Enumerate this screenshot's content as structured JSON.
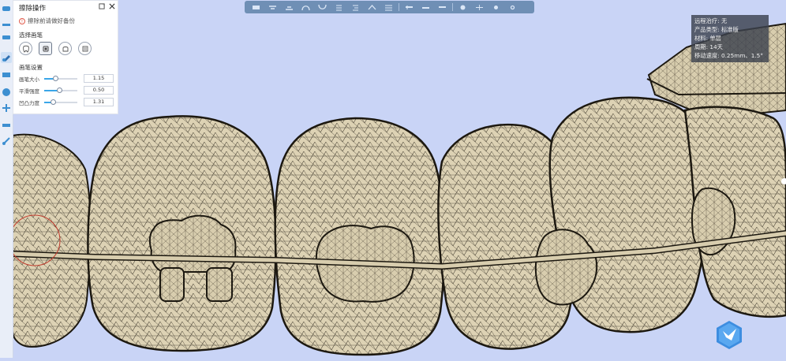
{
  "panel": {
    "title": "擦除操作",
    "warning": "擦除前请做好备份",
    "brush_section": "选择画笔",
    "settings_title": "画笔设置",
    "sliders": [
      {
        "label": "画笔大小",
        "value": "1.15",
        "fraction": 0.33
      },
      {
        "label": "平滑强度",
        "value": "0.50",
        "fraction": 0.45
      },
      {
        "label": "凹凸力度",
        "value": "1.31",
        "fraction": 0.26
      }
    ]
  },
  "info": {
    "line1": "远程治疗: 无",
    "line2": "产品类型: 标准版",
    "line3": "材料: 单层",
    "line4": "周期: 14天",
    "line5": "移动速度: 0.25mm、1.5°"
  },
  "colors": {
    "background": "#c9d4f6",
    "tooth": "#ddd2b4",
    "mesh": "#2a241a",
    "toolbar": "#6f8fb5",
    "accent": "#3ba6e8"
  }
}
